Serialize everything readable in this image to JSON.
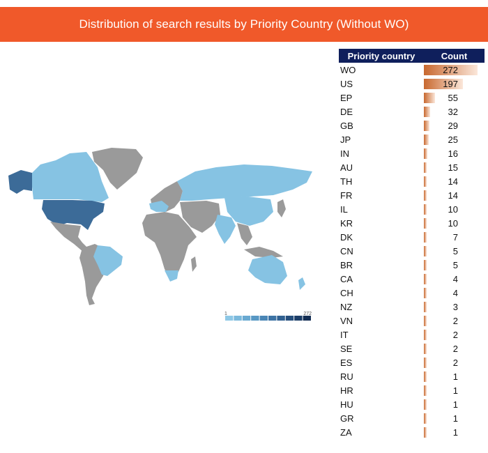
{
  "title": "Distribution of search results by Priority Country (Without WO)",
  "colors": {
    "banner": "#f0592a",
    "header": "#0f1f5c",
    "bar_dark": "#c8682f",
    "land_no_data": "#9a9a9a",
    "land_low": "#86c3e3",
    "land_high": "#3c6b98"
  },
  "legend": {
    "min": "1",
    "max": "272"
  },
  "chart_data": [
    {
      "type": "map",
      "title": "Distribution of search results by Priority Country (Without WO)",
      "highlighted_regions": [
        {
          "region": "US",
          "intensity": "high"
        },
        {
          "region": "CA",
          "intensity": "low"
        },
        {
          "region": "BR",
          "intensity": "low"
        },
        {
          "region": "AU",
          "intensity": "low"
        },
        {
          "region": "NZ",
          "intensity": "low"
        },
        {
          "region": "RU",
          "intensity": "low"
        },
        {
          "region": "CN",
          "intensity": "low"
        },
        {
          "region": "IN",
          "intensity": "low"
        },
        {
          "region": "ZA",
          "intensity": "low"
        }
      ],
      "legend_range": [
        1,
        272
      ]
    },
    {
      "type": "table",
      "columns": [
        "Priority country",
        "Count"
      ],
      "rows": [
        {
          "country": "WO",
          "count": 272
        },
        {
          "country": "US",
          "count": 197
        },
        {
          "country": "EP",
          "count": 55
        },
        {
          "country": "DE",
          "count": 32
        },
        {
          "country": "GB",
          "count": 29
        },
        {
          "country": "JP",
          "count": 25
        },
        {
          "country": "IN",
          "count": 16
        },
        {
          "country": "AU",
          "count": 15
        },
        {
          "country": "TH",
          "count": 14
        },
        {
          "country": "FR",
          "count": 14
        },
        {
          "country": "IL",
          "count": 10
        },
        {
          "country": "KR",
          "count": 10
        },
        {
          "country": "DK",
          "count": 7
        },
        {
          "country": "CN",
          "count": 5
        },
        {
          "country": "BR",
          "count": 5
        },
        {
          "country": "CA",
          "count": 4
        },
        {
          "country": "CH",
          "count": 4
        },
        {
          "country": "NZ",
          "count": 3
        },
        {
          "country": "VN",
          "count": 2
        },
        {
          "country": "IT",
          "count": 2
        },
        {
          "country": "SE",
          "count": 2
        },
        {
          "country": "ES",
          "count": 2
        },
        {
          "country": "RU",
          "count": 1
        },
        {
          "country": "HR",
          "count": 1
        },
        {
          "country": "HU",
          "count": 1
        },
        {
          "country": "GR",
          "count": 1
        },
        {
          "country": "ZA",
          "count": 1
        }
      ]
    }
  ]
}
